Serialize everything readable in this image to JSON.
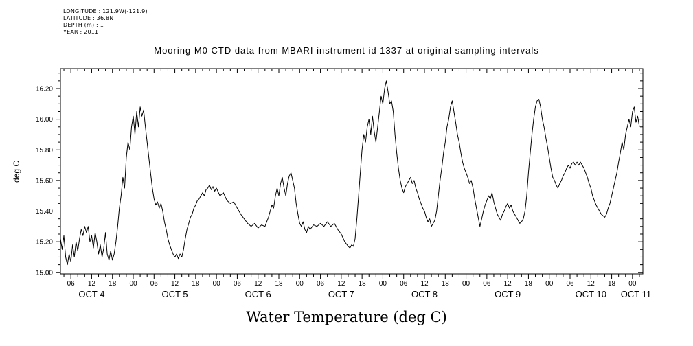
{
  "header": {
    "longitude": "LONGITUDE : 121.9W(-121.9)",
    "latitude": "LATITUDE : 36.8N",
    "depth": "DEPTH (m) : 1",
    "year": "YEAR : 2011"
  },
  "chart_data": {
    "type": "line",
    "title": "Mooring M0 CTD data from MBARI instrument id 1337 at original sampling intervals",
    "xlabel": "Water Temperature (deg C)",
    "ylabel": "deg C",
    "series_name": "water temperature",
    "x_units": "hours since Oct 4 00:00, year 2011",
    "x_range": [
      3,
      171
    ],
    "ylim": [
      15.0,
      16.3
    ],
    "y_render_range": [
      14.99,
      16.33
    ],
    "grid": false,
    "legend": "none",
    "y_ticks": [
      {
        "value": 15.0,
        "label": "15.00"
      },
      {
        "value": 15.2,
        "label": "15.20"
      },
      {
        "value": 15.4,
        "label": "15.40"
      },
      {
        "value": 15.6,
        "label": "15.60"
      },
      {
        "value": 15.8,
        "label": "15.80"
      },
      {
        "value": 16.0,
        "label": "16.00"
      },
      {
        "value": 16.2,
        "label": "16.20"
      }
    ],
    "y_minor_step": 0.05,
    "x_tick_hours": [
      6,
      12,
      18,
      24,
      30,
      36,
      42,
      48,
      54,
      60,
      66,
      72,
      78,
      84,
      90,
      96,
      102,
      108,
      114,
      120,
      126,
      132,
      138,
      144,
      150,
      156,
      162,
      168
    ],
    "x_tick_labels": [
      "06",
      "12",
      "18",
      "00",
      "06",
      "12",
      "18",
      "00",
      "06",
      "12",
      "18",
      "00",
      "06",
      "12",
      "18",
      "00",
      "06",
      "12",
      "18",
      "00",
      "06",
      "12",
      "18",
      "00",
      "06",
      "12",
      "18",
      "00"
    ],
    "day_labels": [
      {
        "h": 12,
        "label": "OCT 4"
      },
      {
        "h": 36,
        "label": "OCT 5"
      },
      {
        "h": 60,
        "label": "OCT 6"
      },
      {
        "h": 84,
        "label": "OCT 7"
      },
      {
        "h": 108,
        "label": "OCT 8"
      },
      {
        "h": 132,
        "label": "OCT 9"
      },
      {
        "h": 156,
        "label": "OCT 10"
      },
      {
        "h": 169,
        "label": "OCT 11"
      }
    ],
    "points": [
      [
        3,
        15.22
      ],
      [
        3.5,
        15.15
      ],
      [
        4,
        15.24
      ],
      [
        4.5,
        15.1
      ],
      [
        5,
        15.05
      ],
      [
        5.5,
        15.12
      ],
      [
        6,
        15.07
      ],
      [
        6.5,
        15.18
      ],
      [
        7,
        15.1
      ],
      [
        7.5,
        15.2
      ],
      [
        8,
        15.14
      ],
      [
        8.5,
        15.22
      ],
      [
        9,
        15.28
      ],
      [
        9.5,
        15.24
      ],
      [
        10,
        15.3
      ],
      [
        10.5,
        15.26
      ],
      [
        11,
        15.3
      ],
      [
        11.5,
        15.2
      ],
      [
        12,
        15.24
      ],
      [
        12.5,
        15.16
      ],
      [
        13,
        15.26
      ],
      [
        13.5,
        15.2
      ],
      [
        14,
        15.12
      ],
      [
        14.5,
        15.18
      ],
      [
        15,
        15.1
      ],
      [
        15.5,
        15.16
      ],
      [
        16,
        15.26
      ],
      [
        16.5,
        15.12
      ],
      [
        17,
        15.08
      ],
      [
        17.5,
        15.14
      ],
      [
        18,
        15.08
      ],
      [
        18.5,
        15.12
      ],
      [
        19,
        15.2
      ],
      [
        19.5,
        15.3
      ],
      [
        20,
        15.42
      ],
      [
        20.5,
        15.5
      ],
      [
        21,
        15.62
      ],
      [
        21.5,
        15.55
      ],
      [
        22,
        15.75
      ],
      [
        22.5,
        15.85
      ],
      [
        23,
        15.8
      ],
      [
        23.5,
        15.95
      ],
      [
        24,
        16.02
      ],
      [
        24.5,
        15.9
      ],
      [
        25,
        16.05
      ],
      [
        25.5,
        15.95
      ],
      [
        26,
        16.08
      ],
      [
        26.5,
        16.02
      ],
      [
        27,
        16.06
      ],
      [
        27.5,
        15.95
      ],
      [
        28,
        15.85
      ],
      [
        28.5,
        15.75
      ],
      [
        29,
        15.65
      ],
      [
        29.5,
        15.55
      ],
      [
        30,
        15.48
      ],
      [
        30.5,
        15.44
      ],
      [
        31,
        15.46
      ],
      [
        31.5,
        15.42
      ],
      [
        32,
        15.45
      ],
      [
        32.5,
        15.4
      ],
      [
        33,
        15.33
      ],
      [
        33.5,
        15.28
      ],
      [
        34,
        15.22
      ],
      [
        34.5,
        15.18
      ],
      [
        35,
        15.15
      ],
      [
        35.5,
        15.12
      ],
      [
        36,
        15.1
      ],
      [
        36.5,
        15.12
      ],
      [
        37,
        15.09
      ],
      [
        37.5,
        15.12
      ],
      [
        38,
        15.1
      ],
      [
        38.5,
        15.15
      ],
      [
        39,
        15.22
      ],
      [
        39.5,
        15.28
      ],
      [
        40,
        15.32
      ],
      [
        40.5,
        15.36
      ],
      [
        41,
        15.38
      ],
      [
        41.5,
        15.42
      ],
      [
        42,
        15.44
      ],
      [
        42.5,
        15.47
      ],
      [
        43,
        15.48
      ],
      [
        43.5,
        15.5
      ],
      [
        44,
        15.52
      ],
      [
        44.5,
        15.5
      ],
      [
        45,
        15.54
      ],
      [
        45.5,
        15.55
      ],
      [
        46,
        15.57
      ],
      [
        46.5,
        15.54
      ],
      [
        47,
        15.56
      ],
      [
        47.5,
        15.53
      ],
      [
        48,
        15.55
      ],
      [
        49,
        15.5
      ],
      [
        50,
        15.52
      ],
      [
        51,
        15.47
      ],
      [
        52,
        15.45
      ],
      [
        53,
        15.46
      ],
      [
        54,
        15.42
      ],
      [
        55,
        15.38
      ],
      [
        56,
        15.35
      ],
      [
        57,
        15.32
      ],
      [
        58,
        15.3
      ],
      [
        59,
        15.32
      ],
      [
        60,
        15.29
      ],
      [
        61,
        15.31
      ],
      [
        62,
        15.3
      ],
      [
        62.5,
        15.33
      ],
      [
        63,
        15.36
      ],
      [
        63.5,
        15.4
      ],
      [
        64,
        15.44
      ],
      [
        64.5,
        15.42
      ],
      [
        65,
        15.5
      ],
      [
        65.5,
        15.55
      ],
      [
        66,
        15.5
      ],
      [
        66.5,
        15.58
      ],
      [
        67,
        15.62
      ],
      [
        67.5,
        15.55
      ],
      [
        68,
        15.5
      ],
      [
        68.5,
        15.58
      ],
      [
        69,
        15.63
      ],
      [
        69.5,
        15.65
      ],
      [
        70,
        15.6
      ],
      [
        70.5,
        15.55
      ],
      [
        71,
        15.45
      ],
      [
        71.5,
        15.38
      ],
      [
        72,
        15.32
      ],
      [
        72.5,
        15.3
      ],
      [
        73,
        15.33
      ],
      [
        73.5,
        15.28
      ],
      [
        74,
        15.26
      ],
      [
        74.5,
        15.3
      ],
      [
        75,
        15.28
      ],
      [
        76,
        15.31
      ],
      [
        77,
        15.3
      ],
      [
        78,
        15.32
      ],
      [
        79,
        15.3
      ],
      [
        80,
        15.33
      ],
      [
        81,
        15.3
      ],
      [
        82,
        15.32
      ],
      [
        83,
        15.28
      ],
      [
        84,
        15.25
      ],
      [
        85,
        15.2
      ],
      [
        86,
        15.17
      ],
      [
        86.5,
        15.16
      ],
      [
        87,
        15.18
      ],
      [
        87.5,
        15.17
      ],
      [
        88,
        15.22
      ],
      [
        88.5,
        15.35
      ],
      [
        89,
        15.5
      ],
      [
        89.5,
        15.65
      ],
      [
        90,
        15.8
      ],
      [
        90.5,
        15.9
      ],
      [
        91,
        15.85
      ],
      [
        91.5,
        15.95
      ],
      [
        92,
        16.0
      ],
      [
        92.5,
        15.9
      ],
      [
        93,
        16.02
      ],
      [
        93.5,
        15.92
      ],
      [
        94,
        15.85
      ],
      [
        94.5,
        15.95
      ],
      [
        95,
        16.05
      ],
      [
        95.5,
        16.15
      ],
      [
        96,
        16.1
      ],
      [
        96.5,
        16.2
      ],
      [
        97,
        16.25
      ],
      [
        97.5,
        16.18
      ],
      [
        98,
        16.1
      ],
      [
        98.5,
        16.12
      ],
      [
        99,
        16.05
      ],
      [
        99.5,
        15.9
      ],
      [
        100,
        15.78
      ],
      [
        100.5,
        15.68
      ],
      [
        101,
        15.6
      ],
      [
        101.5,
        15.55
      ],
      [
        102,
        15.52
      ],
      [
        102.5,
        15.56
      ],
      [
        103,
        15.58
      ],
      [
        103.5,
        15.6
      ],
      [
        104,
        15.62
      ],
      [
        104.5,
        15.58
      ],
      [
        105,
        15.6
      ],
      [
        105.5,
        15.55
      ],
      [
        106,
        15.52
      ],
      [
        106.5,
        15.48
      ],
      [
        107,
        15.45
      ],
      [
        107.5,
        15.42
      ],
      [
        108,
        15.4
      ],
      [
        108.5,
        15.36
      ],
      [
        109,
        15.33
      ],
      [
        109.5,
        15.35
      ],
      [
        110,
        15.3
      ],
      [
        110.5,
        15.32
      ],
      [
        111,
        15.34
      ],
      [
        111.5,
        15.4
      ],
      [
        112,
        15.5
      ],
      [
        112.5,
        15.6
      ],
      [
        113,
        15.68
      ],
      [
        113.5,
        15.78
      ],
      [
        114,
        15.85
      ],
      [
        114.5,
        15.95
      ],
      [
        115,
        16.0
      ],
      [
        115.5,
        16.08
      ],
      [
        116,
        16.12
      ],
      [
        116.5,
        16.05
      ],
      [
        117,
        15.98
      ],
      [
        117.5,
        15.9
      ],
      [
        118,
        15.85
      ],
      [
        118.5,
        15.78
      ],
      [
        119,
        15.72
      ],
      [
        119.5,
        15.68
      ],
      [
        120,
        15.65
      ],
      [
        120.5,
        15.62
      ],
      [
        121,
        15.58
      ],
      [
        121.5,
        15.6
      ],
      [
        122,
        15.55
      ],
      [
        122.5,
        15.48
      ],
      [
        123,
        15.42
      ],
      [
        123.5,
        15.36
      ],
      [
        124,
        15.3
      ],
      [
        124.5,
        15.35
      ],
      [
        125,
        15.4
      ],
      [
        125.5,
        15.44
      ],
      [
        126,
        15.47
      ],
      [
        126.5,
        15.5
      ],
      [
        127,
        15.48
      ],
      [
        127.5,
        15.52
      ],
      [
        128,
        15.46
      ],
      [
        128.5,
        15.42
      ],
      [
        129,
        15.38
      ],
      [
        129.5,
        15.36
      ],
      [
        130,
        15.34
      ],
      [
        130.5,
        15.38
      ],
      [
        131,
        15.4
      ],
      [
        131.5,
        15.43
      ],
      [
        132,
        15.45
      ],
      [
        132.5,
        15.42
      ],
      [
        133,
        15.44
      ],
      [
        133.5,
        15.4
      ],
      [
        134,
        15.38
      ],
      [
        134.5,
        15.36
      ],
      [
        135,
        15.34
      ],
      [
        135.5,
        15.32
      ],
      [
        136,
        15.33
      ],
      [
        136.5,
        15.35
      ],
      [
        137,
        15.4
      ],
      [
        137.5,
        15.5
      ],
      [
        138,
        15.65
      ],
      [
        138.5,
        15.78
      ],
      [
        139,
        15.9
      ],
      [
        139.5,
        16.0
      ],
      [
        140,
        16.08
      ],
      [
        140.5,
        16.12
      ],
      [
        141,
        16.13
      ],
      [
        141.5,
        16.08
      ],
      [
        142,
        16.0
      ],
      [
        142.5,
        15.95
      ],
      [
        143,
        15.88
      ],
      [
        143.5,
        15.82
      ],
      [
        144,
        15.75
      ],
      [
        144.5,
        15.68
      ],
      [
        145,
        15.62
      ],
      [
        145.5,
        15.6
      ],
      [
        146,
        15.57
      ],
      [
        146.5,
        15.55
      ],
      [
        147,
        15.58
      ],
      [
        147.5,
        15.6
      ],
      [
        148,
        15.63
      ],
      [
        148.5,
        15.65
      ],
      [
        149,
        15.68
      ],
      [
        149.5,
        15.7
      ],
      [
        150,
        15.68
      ],
      [
        150.5,
        15.71
      ],
      [
        151,
        15.72
      ],
      [
        151.5,
        15.7
      ],
      [
        152,
        15.72
      ],
      [
        152.5,
        15.7
      ],
      [
        153,
        15.72
      ],
      [
        153.5,
        15.7
      ],
      [
        154,
        15.68
      ],
      [
        154.5,
        15.65
      ],
      [
        155,
        15.62
      ],
      [
        155.5,
        15.58
      ],
      [
        156,
        15.55
      ],
      [
        156.5,
        15.5
      ],
      [
        157,
        15.47
      ],
      [
        157.5,
        15.44
      ],
      [
        158,
        15.42
      ],
      [
        158.5,
        15.4
      ],
      [
        159,
        15.38
      ],
      [
        159.5,
        15.37
      ],
      [
        160,
        15.36
      ],
      [
        160.5,
        15.38
      ],
      [
        161,
        15.42
      ],
      [
        161.5,
        15.45
      ],
      [
        162,
        15.5
      ],
      [
        162.5,
        15.55
      ],
      [
        163,
        15.6
      ],
      [
        163.5,
        15.65
      ],
      [
        164,
        15.72
      ],
      [
        164.5,
        15.78
      ],
      [
        165,
        15.85
      ],
      [
        165.5,
        15.8
      ],
      [
        166,
        15.9
      ],
      [
        166.5,
        15.95
      ],
      [
        167,
        16.0
      ],
      [
        167.5,
        15.95
      ],
      [
        168,
        16.05
      ],
      [
        168.5,
        16.08
      ],
      [
        169,
        15.98
      ],
      [
        169.5,
        16.02
      ],
      [
        170,
        15.95
      ]
    ]
  }
}
